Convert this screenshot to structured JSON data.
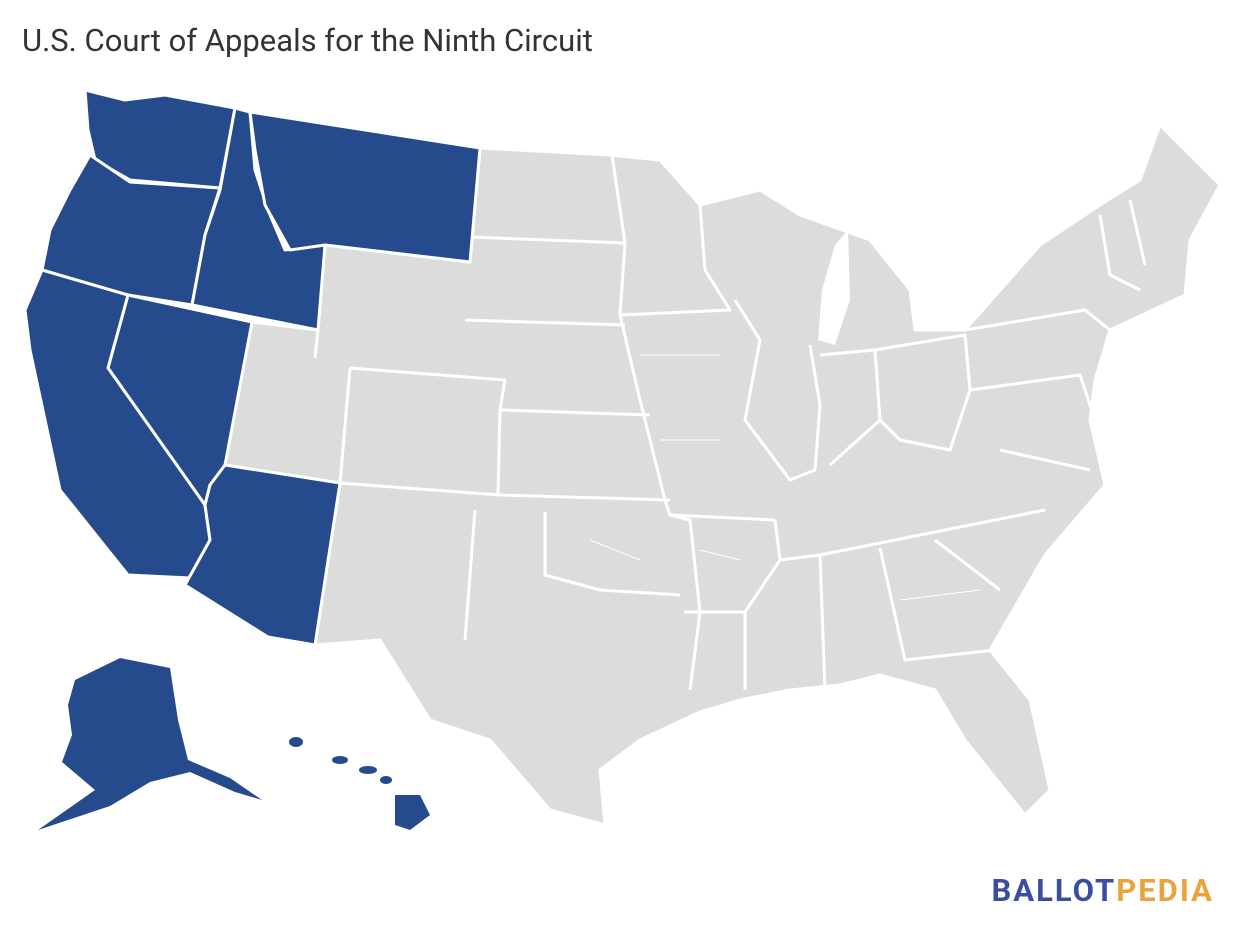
{
  "title": "U.S. Court of Appeals for the Ninth Circuit",
  "logo": {
    "first": "BALLOT",
    "second": "PEDIA"
  }
}
